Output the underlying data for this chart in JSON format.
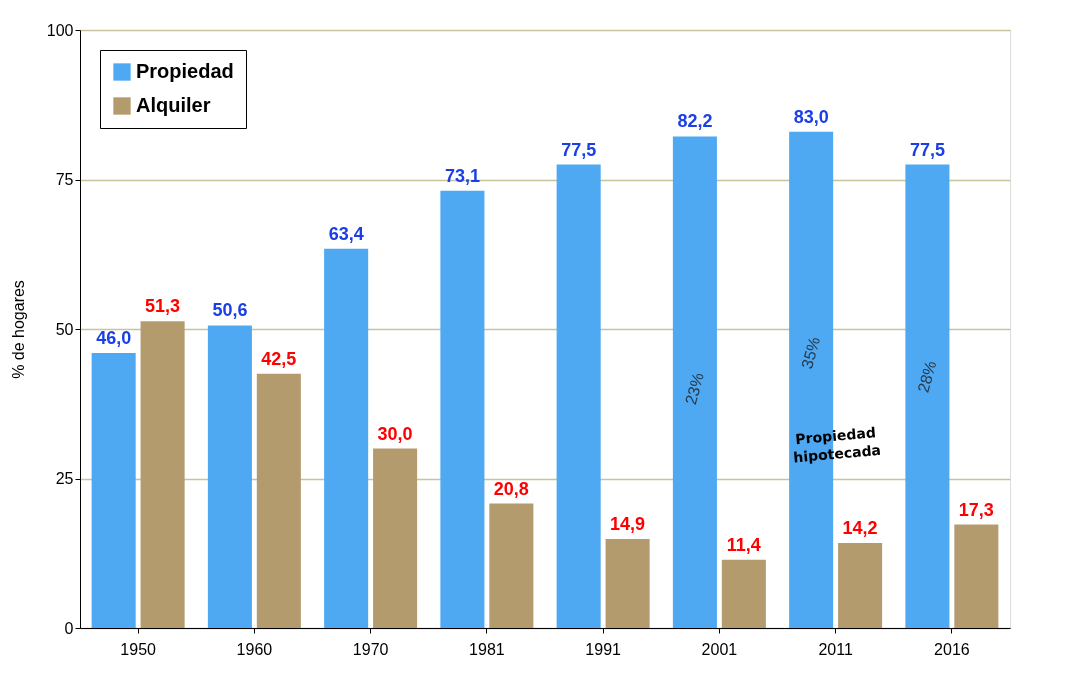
{
  "chart_data": {
    "type": "bar",
    "ylabel": "% de hogares",
    "categories": [
      "1950",
      "1960",
      "1970",
      "1981",
      "1991",
      "2001",
      "2011",
      "2016"
    ],
    "series": [
      {
        "name": "Propiedad",
        "color": "#4ea8f2",
        "values": [
          46.0,
          50.6,
          63.4,
          73.1,
          77.5,
          82.2,
          83.0,
          77.5
        ],
        "value_labels": [
          "46,0",
          "50,6",
          "63,4",
          "73,1",
          "77,5",
          "82,2",
          "83,0",
          "77,5"
        ]
      },
      {
        "name": "Alquiler",
        "color": "#b39b6e",
        "values": [
          51.3,
          42.5,
          30.0,
          20.8,
          14.9,
          11.4,
          14.2,
          17.3
        ],
        "value_labels": [
          "51,3",
          "42,5",
          "30,0",
          "20,8",
          "14,9",
          "11,4",
          "14,2",
          "17,3"
        ]
      }
    ],
    "ylim": [
      0,
      100
    ],
    "yticks": [
      0,
      25,
      50,
      75,
      100
    ],
    "grid": "y",
    "legend": "top left",
    "annotations": [
      {
        "text": "23%",
        "x": "2001",
        "y": 40
      },
      {
        "text": "35%",
        "x": "2011",
        "y": 46
      },
      {
        "text": "28%",
        "x": "2016",
        "y": 42
      },
      {
        "text": "Propiedad hipotecada",
        "x": "2011",
        "y": 32
      }
    ]
  }
}
